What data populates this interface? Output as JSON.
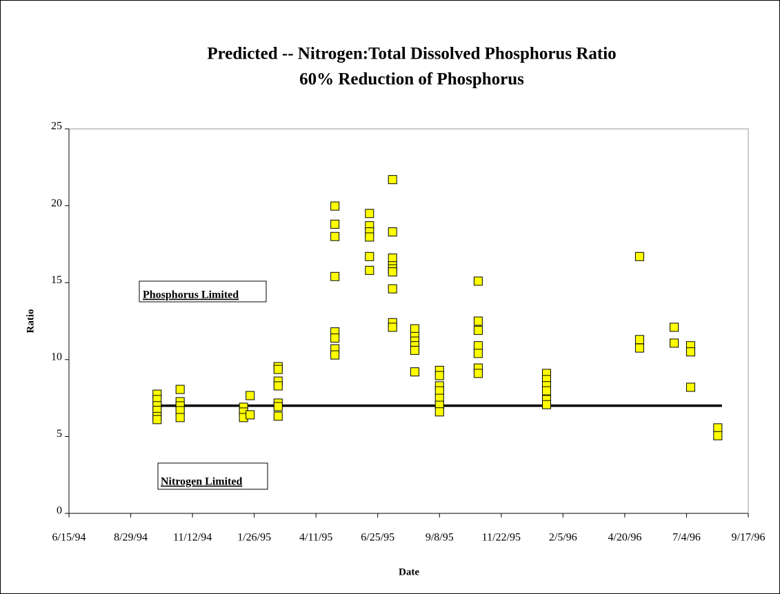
{
  "chart_data": {
    "type": "scatter",
    "title": "Predicted -- Nitrogen:Total Dissolved Phosphorus Ratio",
    "subtitle": "60% Reduction of Phosphorus",
    "x_label": "Date",
    "y_label": "Ratio",
    "color": "#ffff00",
    "x": [
      "9/30/94",
      "9/30/94",
      "9/30/94",
      "9/30/94",
      "9/30/94",
      "9/30/94",
      "10/28/94",
      "10/28/94",
      "10/28/94",
      "10/28/94",
      "10/28/94",
      "1/13/95",
      "1/13/95",
      "1/13/95",
      "1/21/95",
      "1/21/95",
      "2/24/95",
      "2/24/95",
      "2/24/95",
      "2/24/95",
      "2/24/95",
      "2/24/95",
      "2/24/95",
      "5/4/95",
      "5/4/95",
      "5/4/95",
      "5/4/95",
      "5/4/95",
      "5/4/95",
      "5/4/95",
      "5/4/95",
      "6/15/95",
      "6/15/95",
      "6/15/95",
      "6/15/95",
      "6/15/95",
      "6/15/95",
      "7/13/95",
      "7/13/95",
      "7/13/95",
      "7/13/95",
      "7/13/95",
      "7/13/95",
      "7/13/95",
      "7/13/95",
      "7/13/95",
      "8/9/95",
      "8/9/95",
      "8/9/95",
      "8/9/95",
      "8/9/95",
      "8/9/95",
      "9/8/95",
      "9/8/95",
      "9/8/95",
      "9/8/95",
      "9/8/95",
      "9/8/95",
      "9/8/95",
      "10/25/95",
      "10/25/95",
      "10/25/95",
      "10/25/95",
      "10/25/95",
      "10/25/95",
      "10/25/95",
      "1/16/96",
      "1/16/96",
      "1/16/96",
      "1/16/96",
      "1/16/96",
      "1/16/96",
      "5/8/96",
      "5/8/96",
      "5/8/96",
      "6/19/96",
      "6/19/96",
      "7/9/96",
      "7/9/96",
      "7/9/96",
      "8/11/96",
      "8/11/96"
    ],
    "values": [
      7.75,
      7.4,
      7.0,
      6.7,
      6.3,
      6.1,
      8.06,
      7.26,
      6.99,
      6.68,
      6.23,
      6.9,
      6.59,
      6.23,
      7.66,
      6.41,
      9.54,
      9.36,
      8.6,
      8.29,
      7.17,
      6.94,
      6.32,
      19.98,
      18.8,
      18.0,
      15.4,
      11.8,
      11.4,
      10.7,
      10.3,
      19.5,
      18.7,
      18.3,
      17.97,
      16.7,
      15.8,
      21.7,
      18.3,
      16.6,
      16.1,
      15.9,
      15.7,
      14.6,
      12.4,
      12.1,
      12.0,
      11.5,
      11.2,
      10.9,
      10.6,
      9.2,
      9.3,
      8.96,
      8.29,
      7.97,
      7.48,
      7.03,
      6.6,
      15.1,
      12.5,
      11.9,
      10.9,
      10.4,
      9.45,
      9.1,
      9.1,
      8.7,
      8.3,
      7.97,
      7.4,
      7.07,
      16.7,
      11.3,
      10.75,
      12.1,
      11.07,
      10.9,
      10.5,
      8.2,
      5.56,
      5.05
    ],
    "threshold": 7,
    "annotations": [
      "Phosphorus Limited",
      "Nitrogen Limited"
    ],
    "xlim": [
      "6/15/94",
      "9/17/96"
    ],
    "xticks": [
      "6/15/94",
      "8/29/94",
      "11/12/94",
      "1/26/95",
      "4/11/95",
      "6/25/95",
      "9/8/95",
      "11/22/95",
      "2/5/96",
      "4/20/96",
      "7/4/96",
      "9/17/96"
    ],
    "ylim": [
      0,
      25
    ],
    "yticks": [
      0,
      5,
      10,
      15,
      20,
      25
    ]
  }
}
